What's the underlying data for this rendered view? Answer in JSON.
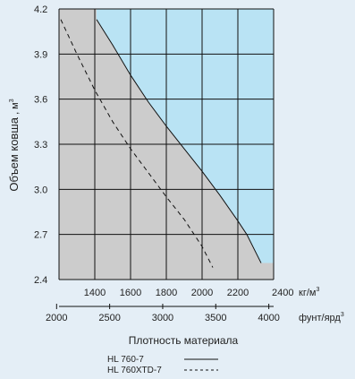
{
  "chart_data": {
    "type": "line",
    "title": "",
    "ylabel": "Объем ковша",
    "ylabel_unit_text": ", м",
    "ylabel_unit_sup": "3",
    "xlabel": "Плотность материала",
    "ylim": [
      2.4,
      4.2
    ],
    "xlim": [
      1200,
      2400
    ],
    "y_ticks": [
      "4.2",
      "3.9",
      "3.6",
      "3.3",
      "3.0",
      "2.7",
      "2.4"
    ],
    "x_ticks_top": [
      "1400",
      "1600",
      "1800",
      "2000",
      "2200",
      "2400"
    ],
    "x_unit_top": "кг/м",
    "x_unit_top_sup": "3",
    "x_ticks_bottom": [
      "2000",
      "2500",
      "3000",
      "3500",
      "4000"
    ],
    "x_unit_bottom": "фунт/ярд",
    "x_unit_bottom_sup": "3",
    "grid": true,
    "colors": {
      "grey_region": "#cccccc",
      "blue_region": "#b9e3f4",
      "background": "#e4eef6",
      "lines": "#111111",
      "grid": "#111111"
    },
    "series": [
      {
        "name": "HL 760-7",
        "style": "solid",
        "x": [
          1410,
          1500,
          1600,
          1700,
          1800,
          1900,
          2000,
          2100,
          2200,
          2250,
          2330
        ],
        "y": [
          4.13,
          3.96,
          3.76,
          3.58,
          3.42,
          3.27,
          3.12,
          2.96,
          2.79,
          2.7,
          2.51
        ]
      },
      {
        "name": "HL 760XTD-7",
        "style": "dashed",
        "x": [
          1210,
          1300,
          1400,
          1500,
          1600,
          1700,
          1800,
          1900,
          2000,
          2060
        ],
        "y": [
          4.13,
          3.9,
          3.66,
          3.45,
          3.27,
          3.11,
          2.95,
          2.8,
          2.62,
          2.48
        ]
      }
    ],
    "legend": {
      "placement": "bottom",
      "entries": [
        "HL 760-7",
        "HL 760XTD-7"
      ]
    }
  }
}
